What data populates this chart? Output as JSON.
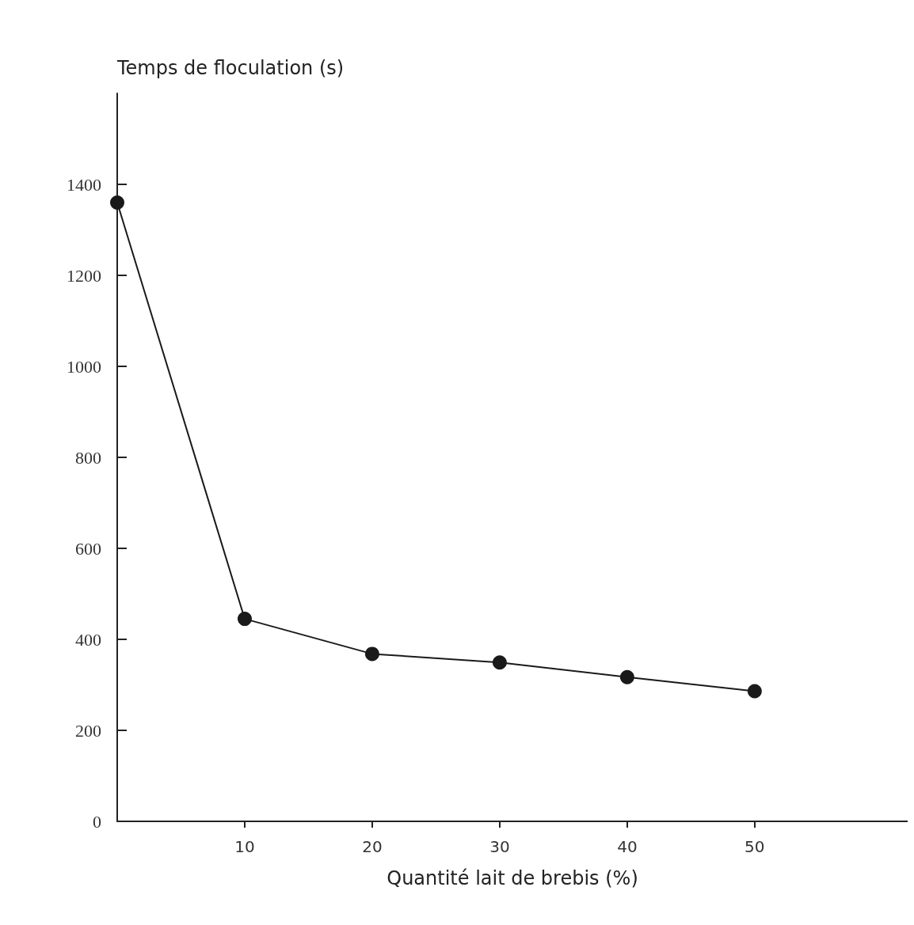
{
  "chart_data": {
    "type": "line",
    "ylabel": "Temps de floculation (s)",
    "xlabel": "Quantité lait de brebis (%)",
    "x": [
      0,
      10,
      20,
      30,
      40,
      50
    ],
    "series": [
      {
        "color": "#1a1a1a",
        "values": [
          1360,
          445,
          368,
          349,
          317,
          286
        ]
      }
    ],
    "xlim": [
      0,
      62
    ],
    "xticks": [
      10,
      20,
      30,
      40,
      50
    ],
    "ylim": [
      0,
      1600
    ],
    "yticks": [
      0,
      200,
      400,
      600,
      800,
      1000,
      1200,
      1400
    ],
    "grid": false,
    "marker": "circle",
    "line_style": "solid"
  }
}
